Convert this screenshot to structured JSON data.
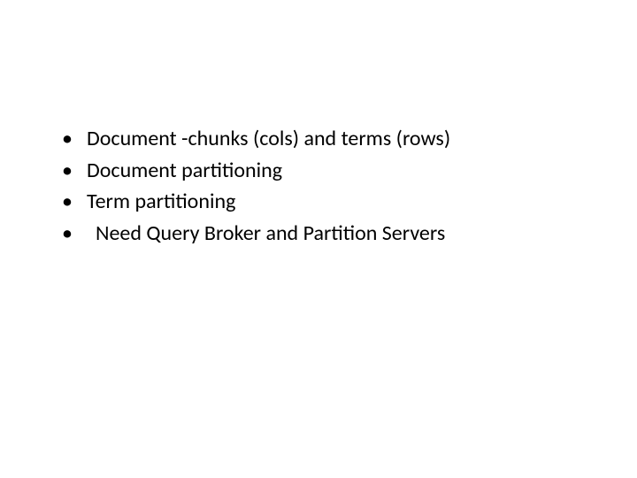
{
  "slide": {
    "bullets": [
      {
        "text": "Document -chunks (cols) and terms (rows)",
        "indented": false
      },
      {
        "text": "Document partitioning",
        "indented": false
      },
      {
        "text": "Term partitioning",
        "indented": false
      },
      {
        "text": "Need Query Broker and Partition Servers",
        "indented": true
      }
    ],
    "background_color": "#ffffff",
    "text_color": "#000000",
    "font_size": 24,
    "font_family": "Calibri, Arial, sans-serif"
  }
}
